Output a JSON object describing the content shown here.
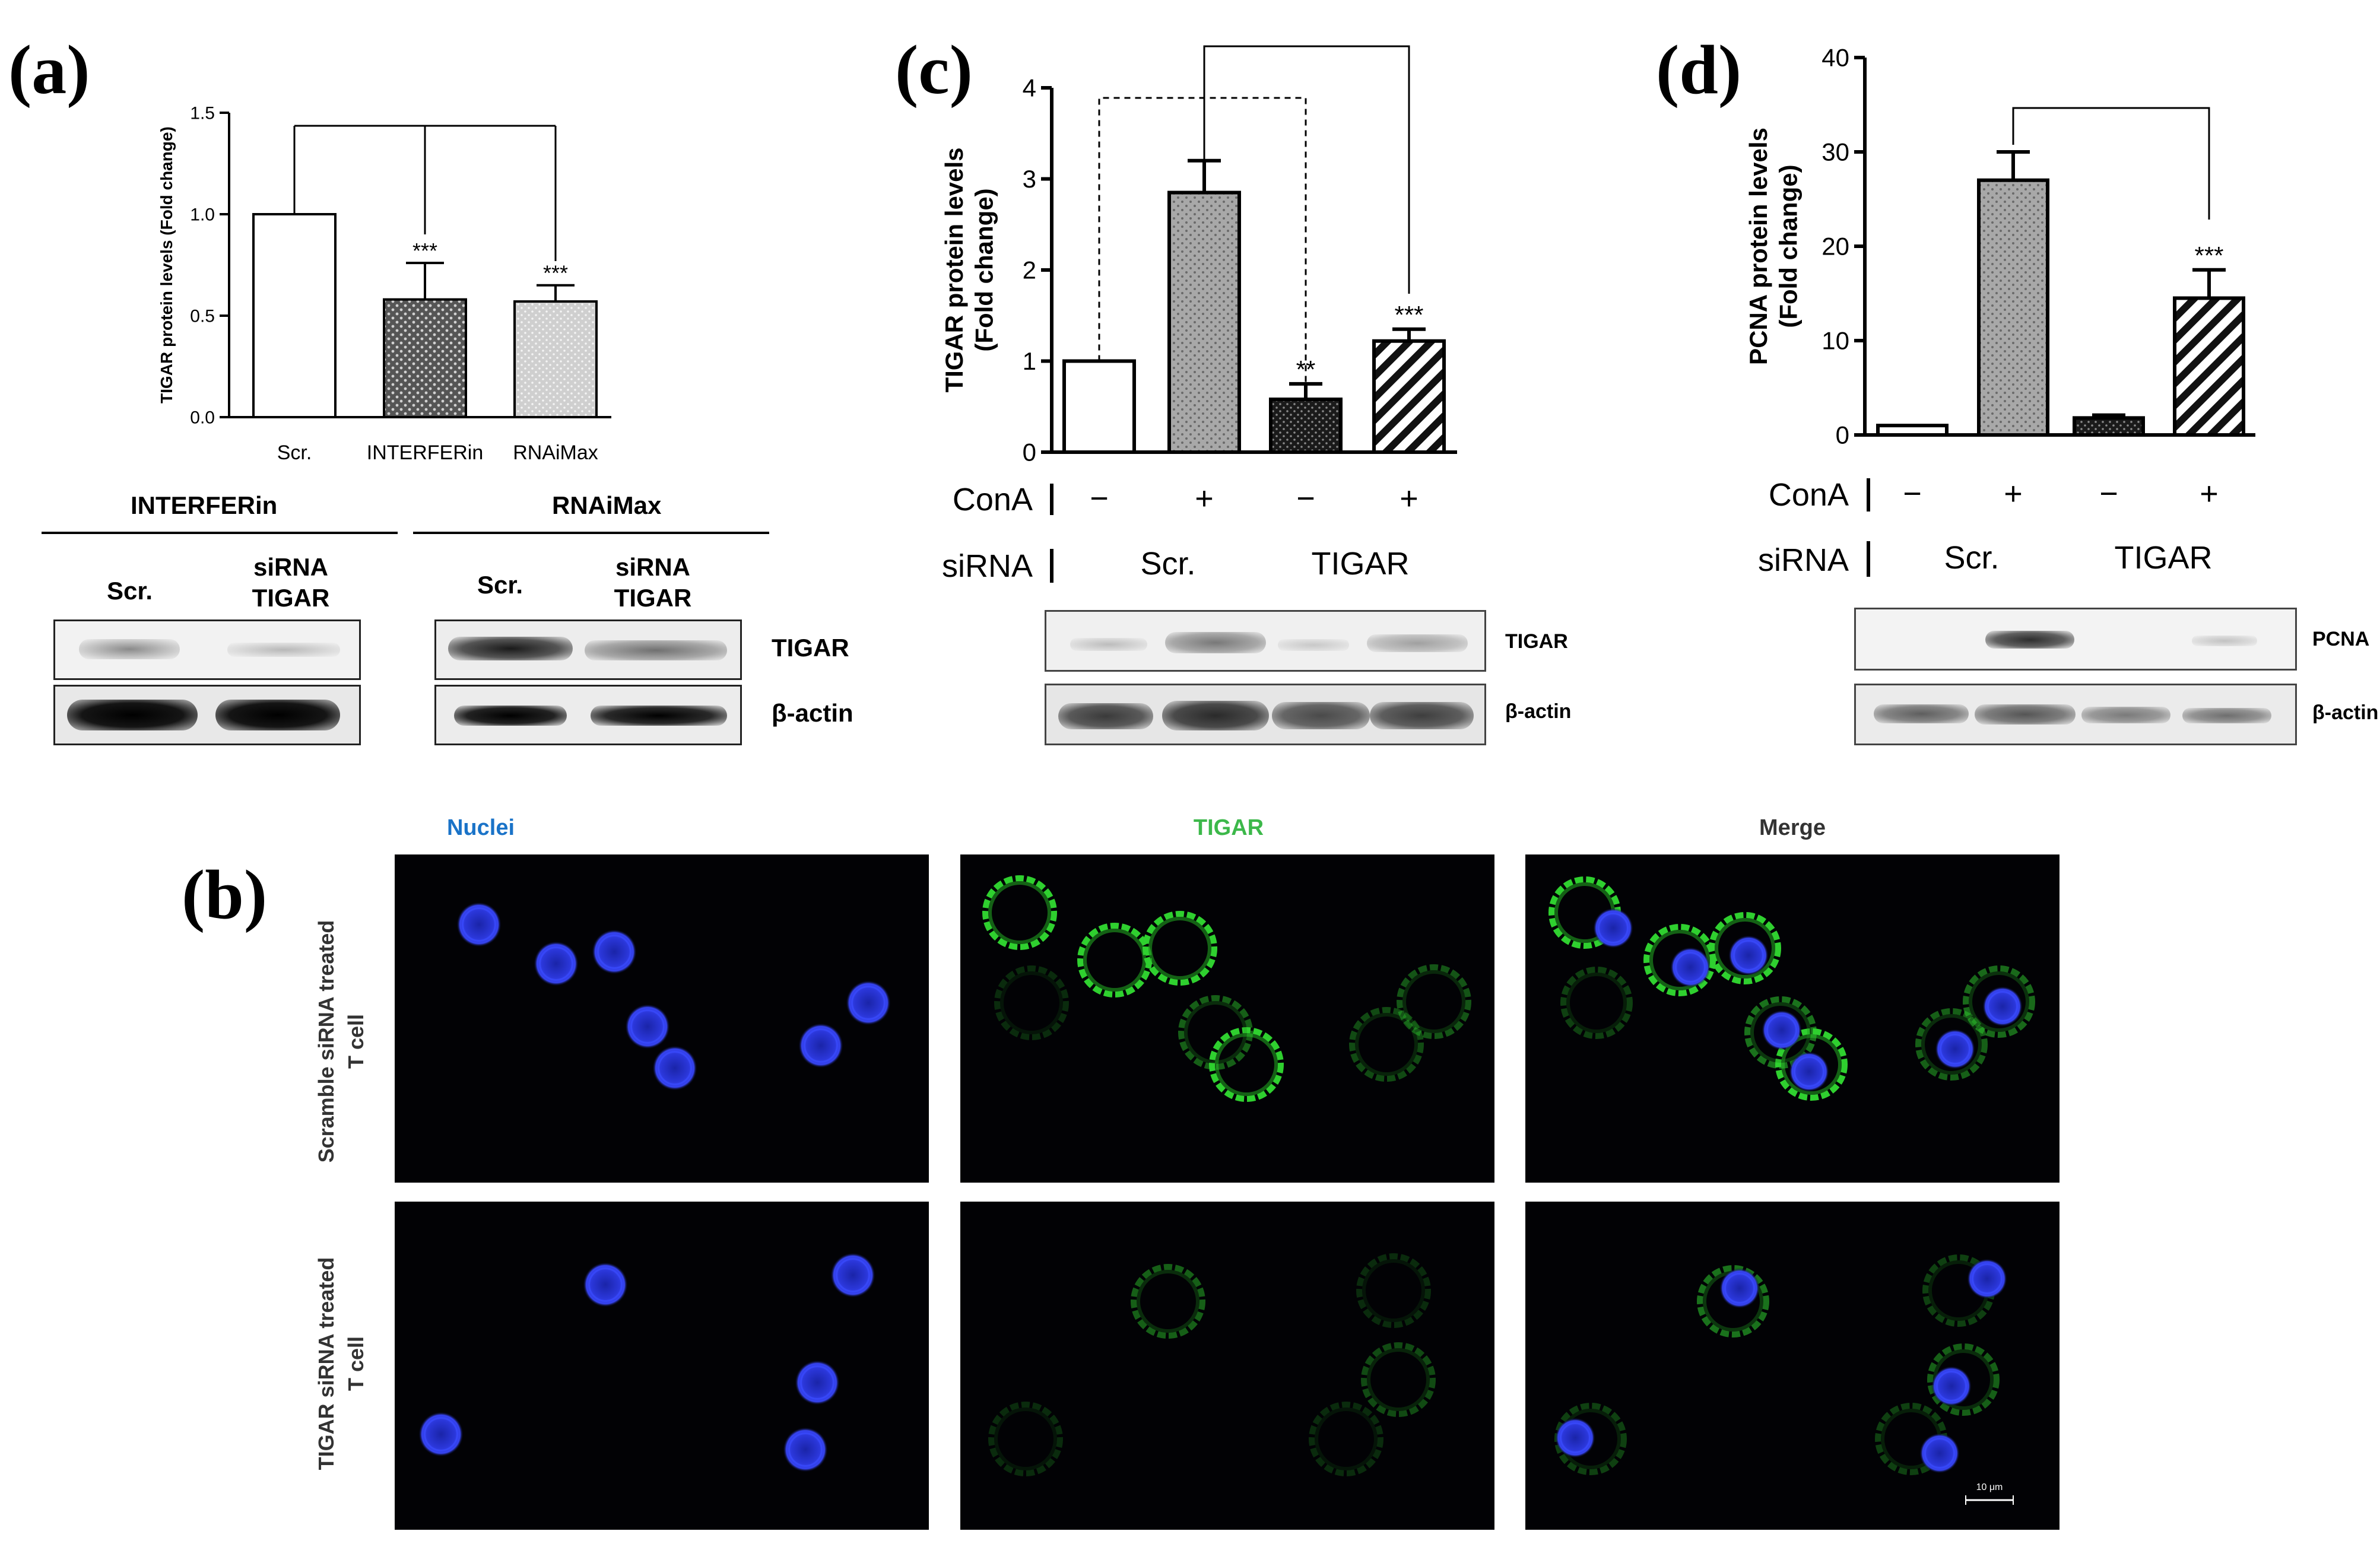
{
  "panels": {
    "a": {
      "letter": "(a)"
    },
    "b": {
      "letter": "(b)"
    },
    "c": {
      "letter": "(c)"
    },
    "d": {
      "letter": "(d)"
    }
  },
  "chart_data": [
    {
      "id": "a",
      "type": "bar",
      "ylabel": "TIGAR protein levels (Fold change)",
      "ylim": [
        0,
        1.5
      ],
      "yticks": [
        "0.0",
        "0.5",
        "1.0",
        "1.5"
      ],
      "categories": [
        "Scr.",
        "INTERFERin",
        "RNAiMax"
      ],
      "values": [
        1.0,
        0.58,
        0.57
      ],
      "errors": [
        0,
        0.18,
        0.08
      ],
      "annotations": [
        "",
        "***",
        "***"
      ],
      "fills": [
        "white",
        "dark-dots",
        "light-dots"
      ]
    },
    {
      "id": "c",
      "type": "bar",
      "ylabel": "TIGAR protein levels",
      "ylabel2": "(Fold change)",
      "ylim": [
        0,
        4
      ],
      "yticks": [
        "0",
        "1",
        "2",
        "3",
        "4"
      ],
      "categories": [
        "Scr. −",
        "Scr. +",
        "TIGAR −",
        "TIGAR +"
      ],
      "values": [
        1.0,
        2.85,
        0.58,
        1.22
      ],
      "errors": [
        0,
        0.35,
        0.17,
        0.13
      ],
      "annotations": [
        "",
        "",
        "**",
        "***"
      ],
      "fills": [
        "white",
        "grey-dots",
        "black-dots",
        "hatch"
      ],
      "conA": [
        "−",
        "+",
        "−",
        "+"
      ],
      "row_labels": {
        "cona": "ConA",
        "sirna": "siRNA"
      },
      "groups": [
        "Scr.",
        "TIGAR"
      ]
    },
    {
      "id": "d",
      "type": "bar",
      "ylabel": "PCNA protein levels",
      "ylabel2": "(Fold change)",
      "ylim": [
        0,
        40
      ],
      "yticks": [
        "0",
        "10",
        "20",
        "30",
        "40"
      ],
      "categories": [
        "Scr. −",
        "Scr. +",
        "TIGAR −",
        "TIGAR +"
      ],
      "values": [
        1.0,
        27.0,
        1.8,
        14.5
      ],
      "errors": [
        0,
        3.0,
        0.3,
        3.0
      ],
      "annotations": [
        "",
        "",
        "",
        "***"
      ],
      "fills": [
        "white",
        "grey-dots",
        "black-dots",
        "hatch"
      ],
      "conA": [
        "−",
        "+",
        "−",
        "+"
      ],
      "row_labels": {
        "cona": "ConA",
        "sirna": "siRNA"
      },
      "groups": [
        "Scr.",
        "TIGAR"
      ]
    }
  ],
  "blots": {
    "a": {
      "left_header": "INTERFERin",
      "right_header": "RNAiMax",
      "lane_scr": "Scr.",
      "lane_sirna_1": "siRNA",
      "lane_sirna_2": "TIGAR",
      "band1": "TIGAR",
      "band2": "β-actin"
    },
    "c": {
      "band1": "TIGAR",
      "band2": "β-actin"
    },
    "d": {
      "band1": "PCNA",
      "band2": "β-actin"
    }
  },
  "microscopy": {
    "columns": [
      "Nuclei",
      "TIGAR",
      "Merge"
    ],
    "column_colors": [
      "#1a73c8",
      "#3cb84a",
      "#333333"
    ],
    "rows": [
      {
        "line1": "Scramble siRNA treated",
        "line2": "T cell"
      },
      {
        "line1": "TIGAR siRNA treated",
        "line2": "T cell"
      }
    ],
    "scale_bar": "10 μm"
  }
}
